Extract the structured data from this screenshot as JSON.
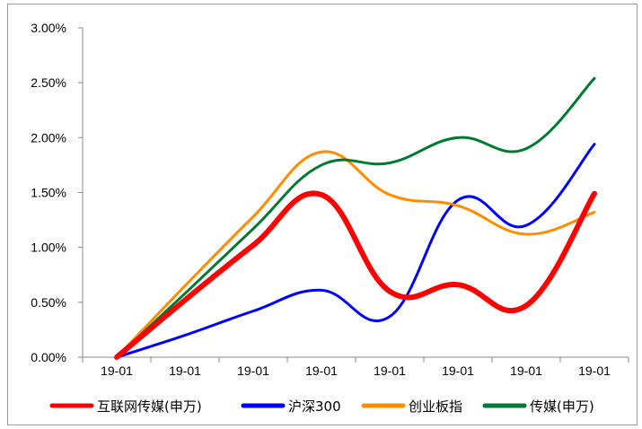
{
  "chart_data": {
    "type": "line",
    "title": "",
    "xlabel": "",
    "ylabel": "",
    "categories": [
      "19-01",
      "19-01",
      "19-01",
      "19-01",
      "19-01",
      "19-01",
      "19-01",
      "19-01"
    ],
    "y_tick_labels": [
      "0.00%",
      "0.50%",
      "1.00%",
      "1.50%",
      "2.00%",
      "2.50%",
      "3.00%"
    ],
    "ylim": [
      0,
      3.0
    ],
    "y_unit": "%",
    "grid": false,
    "legend_position": "bottom",
    "x": [
      0,
      1,
      2,
      3,
      4,
      5,
      6,
      7
    ],
    "series": [
      {
        "name": "互联网传媒(申万)",
        "color": "#ff0000",
        "values": [
          0.0,
          0.52,
          1.02,
          1.48,
          0.6,
          0.66,
          0.47,
          1.49
        ]
      },
      {
        "name": "沪深300",
        "color": "#0000ff",
        "values": [
          0.0,
          0.2,
          0.42,
          0.61,
          0.37,
          1.43,
          1.2,
          1.94
        ]
      },
      {
        "name": "创业板指",
        "color": "#ff8c00",
        "values": [
          0.0,
          0.65,
          1.28,
          1.87,
          1.48,
          1.38,
          1.12,
          1.32
        ]
      },
      {
        "name": "传媒(申万)",
        "color": "#007a33",
        "values": [
          0.0,
          0.58,
          1.17,
          1.75,
          1.77,
          2.0,
          1.9,
          2.54
        ]
      }
    ]
  }
}
